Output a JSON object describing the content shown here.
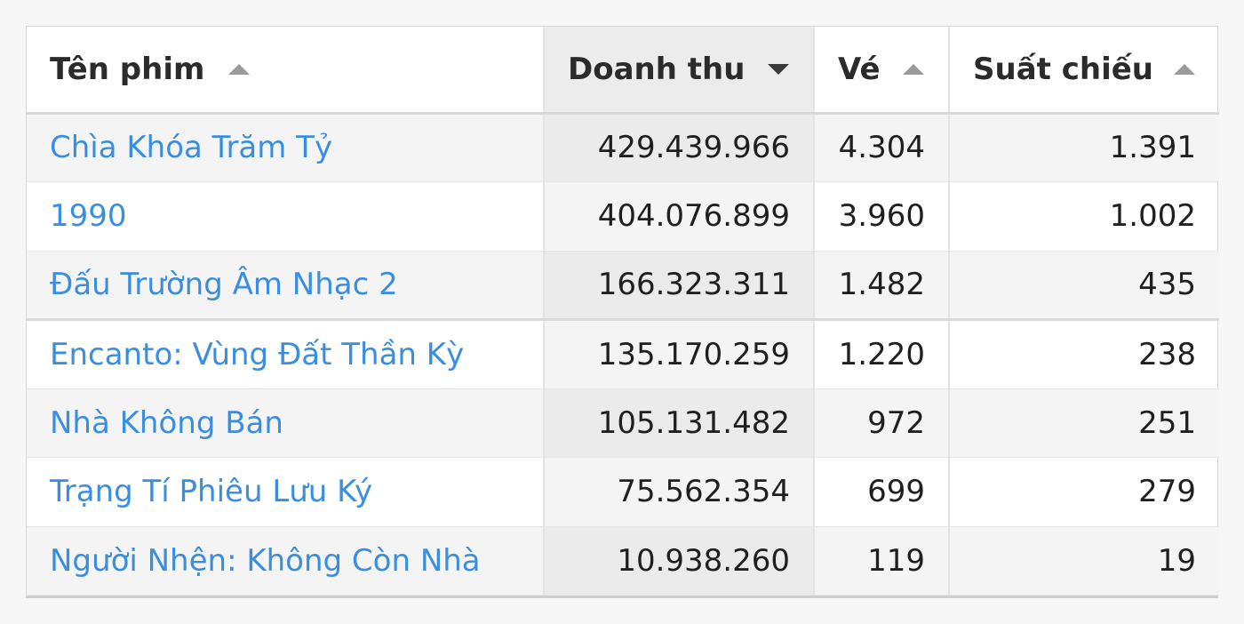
{
  "table": {
    "columns": [
      {
        "label": "Tên phim",
        "sort": "asc"
      },
      {
        "label": "Doanh thu",
        "sort": "desc"
      },
      {
        "label": "Vé",
        "sort": "asc"
      },
      {
        "label": "Suất chiếu",
        "sort": "asc"
      }
    ],
    "rows": [
      {
        "name": "Chìa Khóa Trăm Tỷ",
        "revenue": "429.439.966",
        "tickets": "4.304",
        "screenings": "1.391"
      },
      {
        "name": "1990",
        "revenue": "404.076.899",
        "tickets": "3.960",
        "screenings": "1.002"
      },
      {
        "name": "Đấu Trường Âm Nhạc 2",
        "revenue": "166.323.311",
        "tickets": "1.482",
        "screenings": "435"
      },
      {
        "name": "Encanto: Vùng Đất Thần Kỳ",
        "revenue": "135.170.259",
        "tickets": "1.220",
        "screenings": "238"
      },
      {
        "name": "Nhà Không Bán",
        "revenue": "105.131.482",
        "tickets": "972",
        "screenings": "251"
      },
      {
        "name": "Trạng Tí Phiêu Lưu Ký",
        "revenue": "75.562.354",
        "tickets": "699",
        "screenings": "279"
      },
      {
        "name": "Người Nhện: Không Còn Nhà",
        "revenue": "10.938.260",
        "tickets": "119",
        "screenings": "19"
      }
    ]
  },
  "colors": {
    "link": "#3a8ee0",
    "sort_icon_active": "#3a3a3a",
    "sort_icon_inactive": "#9a9a9a"
  }
}
